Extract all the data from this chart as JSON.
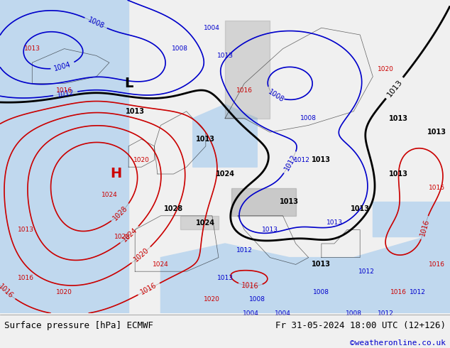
{
  "title_left": "Surface pressure [hPa] ECMWF",
  "title_right": "Fr 31-05-2024 18:00 UTC (12+126)",
  "copyright": "©weatheronline.co.uk",
  "map_bg": "#d8ecb8",
  "sea_color": "#c0d8ee",
  "footer_bg": "#f0f0f0",
  "footer_text_color": "#000000",
  "copyright_color": "#0000cc",
  "fig_width": 6.34,
  "fig_height": 4.9,
  "dpi": 100
}
